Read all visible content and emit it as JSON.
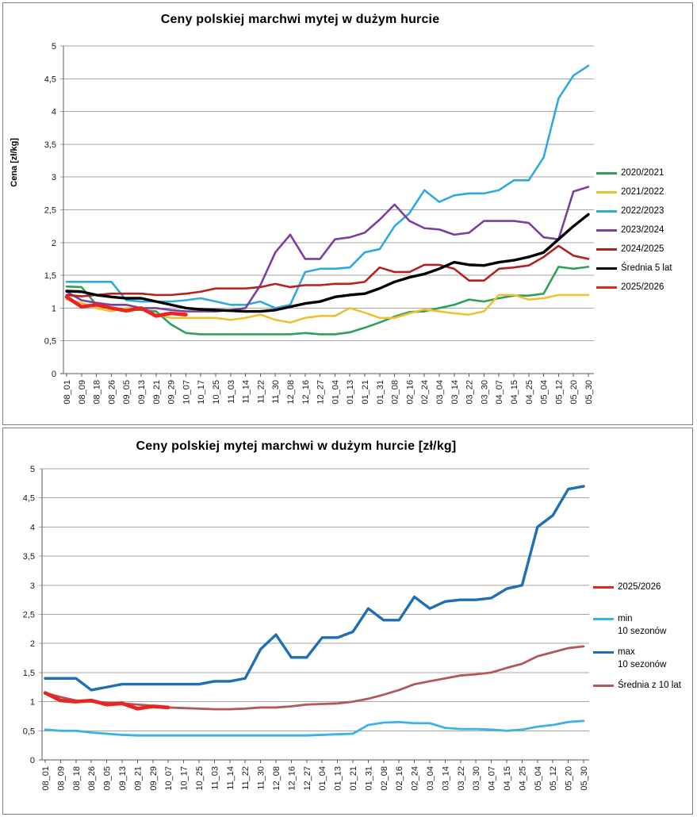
{
  "chart_data": [
    {
      "type": "line",
      "title": "Ceny polskiej marchwi mytej w dużym hurcie",
      "y_axis_label": "Cena [zł/kg]",
      "ylim": [
        0,
        5
      ],
      "y_ticks": [
        "5",
        "4,5",
        "4",
        "3,5",
        "3",
        "2,5",
        "2",
        "1,5",
        "1",
        "0,5",
        "0"
      ],
      "grid_color": "#a6a6a6",
      "axis_color": "#595959",
      "legend_position": "right",
      "grid": "horizontal",
      "x_labels": [
        "08_01",
        "08_09",
        "08_18",
        "08_26",
        "09_05",
        "09_13",
        "09_21",
        "09_29",
        "10_07",
        "10_17",
        "10_25",
        "11_03",
        "11_14",
        "11_22",
        "11_30",
        "12_08",
        "12_16",
        "12_27",
        "01_04",
        "01_13",
        "01_21",
        "01_31",
        "02_08",
        "02_16",
        "02_24",
        "03_04",
        "03_14",
        "03_22",
        "03_30",
        "04_07",
        "04_15",
        "04_25",
        "05_04",
        "05_12",
        "05_20",
        "05_30"
      ],
      "series": [
        {
          "name": "2020/2021",
          "color": "#2da05a",
          "width": 2.6,
          "values": [
            1.33,
            1.32,
            1.05,
            1.0,
            0.98,
            0.97,
            0.95,
            0.75,
            0.62,
            0.6,
            0.6,
            0.6,
            0.6,
            0.6,
            0.6,
            0.6,
            0.62,
            0.6,
            0.6,
            0.63,
            0.7,
            0.78,
            0.87,
            0.94,
            0.95,
            1.0,
            1.05,
            1.13,
            1.1,
            1.15,
            1.19,
            1.19,
            1.22,
            1.63,
            1.6,
            1.63
          ]
        },
        {
          "name": "2021/2022",
          "color": "#efc030",
          "width": 2.6,
          "values": [
            1.13,
            1.08,
            1.0,
            0.95,
            1.0,
            1.0,
            0.9,
            0.85,
            0.85,
            0.85,
            0.85,
            0.82,
            0.85,
            0.9,
            0.82,
            0.78,
            0.85,
            0.88,
            0.88,
            1.0,
            0.93,
            0.85,
            0.85,
            0.92,
            0.98,
            0.95,
            0.92,
            0.9,
            0.95,
            1.2,
            1.2,
            1.13,
            1.15,
            1.2,
            1.2,
            1.2
          ]
        },
        {
          "name": "2022/2023",
          "color": "#2faade",
          "width": 2.6,
          "values": [
            1.4,
            1.4,
            1.4,
            1.4,
            1.12,
            1.1,
            1.1,
            1.1,
            1.12,
            1.15,
            1.1,
            1.05,
            1.05,
            1.1,
            1.0,
            1.05,
            1.55,
            1.6,
            1.6,
            1.62,
            1.85,
            1.9,
            2.25,
            2.45,
            2.8,
            2.62,
            2.72,
            2.75,
            2.75,
            2.8,
            2.95,
            2.95,
            3.3,
            4.2,
            4.55,
            4.7
          ]
        },
        {
          "name": "2023/2024",
          "color": "#7b3fa0",
          "width": 2.6,
          "values": [
            1.25,
            1.12,
            1.08,
            1.05,
            1.05,
            1.0,
            1.0,
            0.97,
            0.95,
            0.95,
            0.95,
            0.97,
            1.0,
            1.35,
            1.85,
            2.12,
            1.75,
            1.75,
            2.05,
            2.08,
            2.15,
            2.35,
            2.58,
            2.33,
            2.22,
            2.2,
            2.12,
            2.15,
            2.33,
            2.33,
            2.33,
            2.3,
            2.08,
            2.05,
            2.78,
            2.85
          ]
        },
        {
          "name": "2024/2025",
          "color": "#b42121",
          "width": 2.6,
          "values": [
            1.2,
            1.18,
            1.2,
            1.22,
            1.22,
            1.22,
            1.2,
            1.2,
            1.22,
            1.25,
            1.3,
            1.3,
            1.3,
            1.32,
            1.37,
            1.32,
            1.35,
            1.35,
            1.37,
            1.37,
            1.4,
            1.62,
            1.55,
            1.55,
            1.66,
            1.66,
            1.6,
            1.42,
            1.42,
            1.6,
            1.62,
            1.65,
            1.78,
            1.95,
            1.8,
            1.75
          ]
        },
        {
          "name": "2025/2026",
          "color": "#e8251f",
          "width": 4.6,
          "values": [
            1.17,
            1.02,
            1.05,
            1.0,
            0.96,
            1.0,
            0.88,
            0.92,
            0.9,
            null,
            null,
            null,
            null,
            null,
            null,
            null,
            null,
            null,
            null,
            null,
            null,
            null,
            null,
            null,
            null,
            null,
            null,
            null,
            null,
            null,
            null,
            null,
            null,
            null,
            null,
            null
          ]
        },
        {
          "name": "Średnia 5 lat",
          "color": "#000000",
          "width": 3.4,
          "values": [
            1.26,
            1.25,
            1.2,
            1.17,
            1.15,
            1.15,
            1.1,
            1.05,
            1.0,
            0.98,
            0.97,
            0.96,
            0.95,
            0.95,
            0.97,
            1.02,
            1.07,
            1.1,
            1.17,
            1.2,
            1.22,
            1.3,
            1.4,
            1.47,
            1.52,
            1.6,
            1.7,
            1.66,
            1.65,
            1.7,
            1.73,
            1.78,
            1.85,
            2.05,
            2.25,
            2.43
          ]
        }
      ],
      "legend": [
        {
          "lines": [
            "2020/2021"
          ],
          "color": "#2da05a"
        },
        {
          "lines": [
            "2021/2022"
          ],
          "color": "#efc030"
        },
        {
          "lines": [
            "2022/2023"
          ],
          "color": "#2faade"
        },
        {
          "lines": [
            "2023/2024"
          ],
          "color": "#7b3fa0"
        },
        {
          "lines": [
            "2024/2025"
          ],
          "color": "#b42121"
        },
        {
          "lines": [
            "Średnia 5 lat"
          ],
          "color": "#000000"
        },
        {
          "lines": [
            "2025/2026"
          ],
          "color": "#e8251f"
        }
      ]
    },
    {
      "type": "line",
      "title": "Ceny polskiej mytej marchwi w dużym hurcie [zł/kg]",
      "y_axis_label": "",
      "ylim": [
        0,
        5
      ],
      "y_ticks": [
        "5",
        "4,5",
        "4",
        "3,5",
        "3",
        "2,5",
        "2",
        "1,5",
        "1",
        "0,5",
        "0"
      ],
      "grid_color": "#a6a6a6",
      "axis_color": "#595959",
      "legend_position": "right",
      "grid": "horizontal",
      "x_labels": [
        "08_01",
        "08_09",
        "08_18",
        "08_26",
        "09_05",
        "09_13",
        "09_21",
        "09_29",
        "10_07",
        "10_17",
        "10_25",
        "11_03",
        "11_14",
        "11_22",
        "11_30",
        "12_08",
        "12_16",
        "12_27",
        "01_04",
        "01_13",
        "01_21",
        "01_31",
        "02_08",
        "02_16",
        "02_24",
        "03_04",
        "03_14",
        "03_22",
        "03_30",
        "04_07",
        "04_15",
        "04_25",
        "05_04",
        "05_12",
        "05_20",
        "05_30"
      ],
      "series": [
        {
          "name": "min 10 sezonów",
          "color": "#3bb3e6",
          "width": 2.8,
          "values": [
            0.52,
            0.5,
            0.5,
            0.47,
            0.45,
            0.43,
            0.42,
            0.42,
            0.42,
            0.42,
            0.42,
            0.42,
            0.42,
            0.42,
            0.42,
            0.42,
            0.42,
            0.42,
            0.43,
            0.44,
            0.45,
            0.6,
            0.64,
            0.65,
            0.63,
            0.63,
            0.55,
            0.53,
            0.53,
            0.52,
            0.5,
            0.52,
            0.57,
            0.6,
            0.65,
            0.67
          ]
        },
        {
          "name": "Średnia z 10 lat",
          "color": "#b25858",
          "width": 2.8,
          "values": [
            1.15,
            1.08,
            1.02,
            1.0,
            0.98,
            0.97,
            0.95,
            0.93,
            0.9,
            0.89,
            0.88,
            0.87,
            0.87,
            0.88,
            0.9,
            0.9,
            0.92,
            0.95,
            0.96,
            0.97,
            1.0,
            1.05,
            1.12,
            1.2,
            1.3,
            1.35,
            1.4,
            1.45,
            1.47,
            1.5,
            1.58,
            1.65,
            1.78,
            1.85,
            1.92,
            1.95
          ]
        },
        {
          "name": "max 10 sezonów",
          "color": "#1f6fb4",
          "width": 3.4,
          "values": [
            1.4,
            1.4,
            1.4,
            1.2,
            1.25,
            1.3,
            1.3,
            1.3,
            1.3,
            1.3,
            1.3,
            1.35,
            1.35,
            1.4,
            1.9,
            2.15,
            1.76,
            1.76,
            2.1,
            2.1,
            2.2,
            2.6,
            2.4,
            2.4,
            2.8,
            2.6,
            2.72,
            2.75,
            2.75,
            2.78,
            2.94,
            3.0,
            4.0,
            4.2,
            4.65,
            4.7
          ]
        },
        {
          "name": "2025/2026",
          "color": "#e8251f",
          "width": 4.6,
          "values": [
            1.15,
            1.02,
            1.0,
            1.02,
            0.95,
            0.97,
            0.88,
            0.92,
            0.9,
            null,
            null,
            null,
            null,
            null,
            null,
            null,
            null,
            null,
            null,
            null,
            null,
            null,
            null,
            null,
            null,
            null,
            null,
            null,
            null,
            null,
            null,
            null,
            null,
            null,
            null,
            null
          ]
        }
      ],
      "legend": [
        {
          "lines": [
            "2025/2026"
          ],
          "color": "#e8251f"
        },
        {
          "lines": [
            "min",
            "10 sezonów"
          ],
          "color": "#3bb3e6"
        },
        {
          "lines": [
            "max",
            "10 sezonów"
          ],
          "color": "#1f6fb4"
        },
        {
          "lines": [
            "Średnia z 10 lat"
          ],
          "color": "#b25858"
        }
      ]
    }
  ]
}
